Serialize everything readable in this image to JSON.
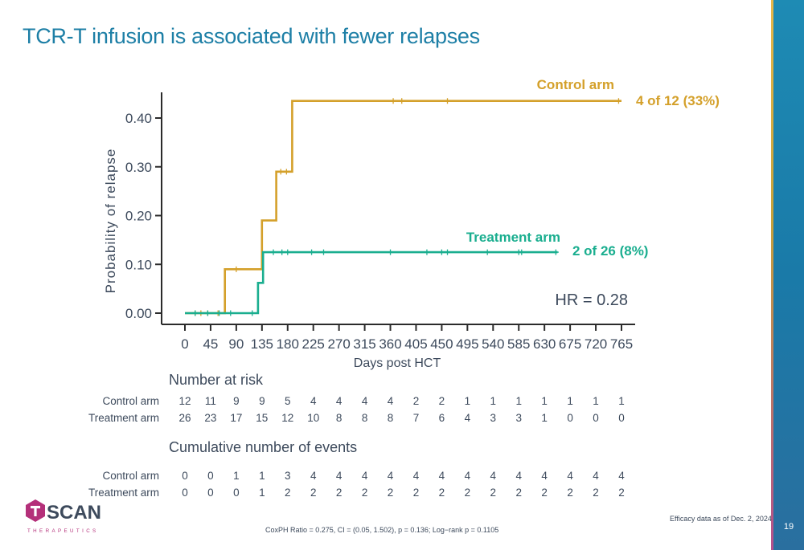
{
  "slide": {
    "title": "TCR-T infusion is associated with fewer relapses",
    "page_number": "19",
    "footnote": "CoxPH Ratio = 0.275, CI = (0.05, 1.502), p = 0.136; Log−rank p = 0.1105",
    "efficacy_note": "Efficacy data as of Dec. 2, 2024",
    "logo": {
      "name": "TSCAN",
      "tagline": "THERAPEUTICS"
    },
    "colors": {
      "control": "#d4a02a",
      "treatment": "#1aae8f",
      "title": "#1d7fa6",
      "text": "#3d4a5c",
      "logo_magenta": "#b4307a"
    }
  },
  "chart_data": {
    "type": "line",
    "title": "",
    "xlabel": "Days post HCT",
    "ylabel": "Probability of relapse",
    "xlim": [
      0,
      765
    ],
    "ylim": [
      0,
      0.43
    ],
    "x_ticks": [
      0,
      45,
      90,
      135,
      180,
      225,
      270,
      315,
      360,
      405,
      450,
      495,
      540,
      585,
      630,
      675,
      720,
      765
    ],
    "y_ticks": [
      0,
      0.1,
      0.2,
      0.3,
      0.4
    ],
    "y_tick_labels": [
      "0.00",
      "0.10",
      "0.20",
      "0.30",
      "0.40"
    ],
    "series": [
      {
        "name": "Control arm",
        "color": "#d4a02a",
        "end_label": "4 of 12 (33%)",
        "steps": [
          [
            0,
            0
          ],
          [
            70,
            0
          ],
          [
            70,
            0.09
          ],
          [
            135,
            0.09
          ],
          [
            135,
            0.19
          ],
          [
            160,
            0.19
          ],
          [
            160,
            0.29
          ],
          [
            188,
            0.29
          ],
          [
            188,
            0.435
          ],
          [
            765,
            0.435
          ]
        ],
        "censor_x": [
          18,
          28,
          40,
          58,
          90,
          168,
          178,
          365,
          380,
          460,
          760
        ]
      },
      {
        "name": "Treatment arm",
        "color": "#1aae8f",
        "end_label": "2 of 26 (8%)",
        "steps": [
          [
            0,
            0
          ],
          [
            128,
            0
          ],
          [
            128,
            0.062
          ],
          [
            137,
            0.062
          ],
          [
            137,
            0.125
          ],
          [
            653,
            0.125
          ]
        ],
        "censor_x": [
          18,
          40,
          60,
          80,
          118,
          155,
          170,
          180,
          222,
          243,
          360,
          424,
          450,
          460,
          530,
          585,
          590,
          650
        ]
      }
    ],
    "annotation": "HR = 0.28"
  },
  "risk_table": {
    "heading": "Number at risk",
    "rows": [
      {
        "label": "Control arm",
        "values": [
          "12",
          "11",
          "9",
          "9",
          "5",
          "4",
          "4",
          "4",
          "4",
          "2",
          "2",
          "1",
          "1",
          "1",
          "1",
          "1",
          "1",
          "1"
        ]
      },
      {
        "label": "Treatment arm",
        "values": [
          "26",
          "23",
          "17",
          "15",
          "12",
          "10",
          "8",
          "8",
          "8",
          "7",
          "6",
          "4",
          "3",
          "3",
          "1",
          "0",
          "0",
          "0"
        ]
      }
    ]
  },
  "events_table": {
    "heading": "Cumulative number of events",
    "rows": [
      {
        "label": "Control arm",
        "values": [
          "0",
          "0",
          "1",
          "1",
          "3",
          "4",
          "4",
          "4",
          "4",
          "4",
          "4",
          "4",
          "4",
          "4",
          "4",
          "4",
          "4",
          "4"
        ]
      },
      {
        "label": "Treatment arm",
        "values": [
          "0",
          "0",
          "0",
          "1",
          "2",
          "2",
          "2",
          "2",
          "2",
          "2",
          "2",
          "2",
          "2",
          "2",
          "2",
          "2",
          "2",
          "2"
        ]
      }
    ]
  }
}
